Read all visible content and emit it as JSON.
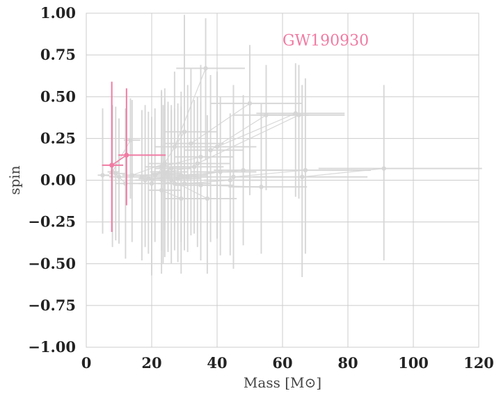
{
  "chart_data": {
    "type": "scatter",
    "xlabel": "Mass [M⊙]",
    "ylabel": "spin",
    "xlim": [
      0,
      120
    ],
    "ylim": [
      -1.0,
      1.0
    ],
    "x_ticks": [
      "0",
      "20",
      "40",
      "60",
      "80",
      "100",
      "120"
    ],
    "y_ticks": [
      "1.00",
      "0.75",
      "0.50",
      "0.25",
      "0.00",
      "−0.25",
      "−0.50",
      "−0.75",
      "−1.00"
    ],
    "grid": true,
    "colors": {
      "background_events": "#d6d6d6",
      "highlight": "#f07ba3",
      "grid": "#cccccc"
    },
    "annotation": {
      "text": "GW190930",
      "x": 60,
      "y": 0.84
    },
    "highlight": {
      "name": "GW190930",
      "points": [
        {
          "x": 7.8,
          "y": 0.09,
          "xerr": [
            3.0,
            3.5
          ],
          "yerr": [
            0.4,
            0.5
          ]
        },
        {
          "x": 12.3,
          "y": 0.15,
          "xerr": [
            2.5,
            12.0
          ],
          "yerr": [
            0.3,
            0.4
          ]
        }
      ]
    },
    "events": [
      {
        "points": [
          {
            "x": 36.5,
            "y": 0.67,
            "xerr": [
              9,
              12
            ],
            "yerr": [
              0.55,
              0.3
            ]
          },
          {
            "x": 27.0,
            "y": 0.2,
            "xerr": [
              6,
              8
            ],
            "yerr": [
              0.5,
              0.45
            ]
          }
        ]
      },
      {
        "points": [
          {
            "x": 50.0,
            "y": 0.46,
            "xerr": [
              12,
              16
            ],
            "yerr": [
              0.55,
              0.35
            ]
          },
          {
            "x": 32.0,
            "y": 0.22,
            "xerr": [
              8,
              10
            ],
            "yerr": [
              0.55,
              0.45
            ]
          }
        ]
      },
      {
        "points": [
          {
            "x": 64.0,
            "y": 0.4,
            "xerr": [
              12,
              15
            ],
            "yerr": [
              0.5,
              0.3
            ]
          },
          {
            "x": 40.0,
            "y": 0.2,
            "xerr": [
              10,
              12
            ],
            "yerr": [
              0.55,
              0.45
            ]
          }
        ]
      },
      {
        "points": [
          {
            "x": 55.0,
            "y": 0.39,
            "xerr": [
              10,
              13
            ],
            "yerr": [
              0.45,
              0.3
            ]
          },
          {
            "x": 38.0,
            "y": 0.18,
            "xerr": [
              8,
              10
            ],
            "yerr": [
              0.55,
              0.45
            ]
          }
        ]
      },
      {
        "points": [
          {
            "x": 65.0,
            "y": 0.39,
            "xerr": [
              12,
              14
            ],
            "yerr": [
              0.5,
              0.3
            ]
          },
          {
            "x": 34.0,
            "y": 0.1,
            "xerr": [
              8,
              10
            ],
            "yerr": [
              0.5,
              0.4
            ]
          }
        ]
      },
      {
        "points": [
          {
            "x": 91.0,
            "y": 0.07,
            "xerr": [
              20,
              30
            ],
            "yerr": [
              0.55,
              0.5
            ]
          },
          {
            "x": 66.0,
            "y": 0.02,
            "xerr": [
              15,
              20
            ],
            "yerr": [
              0.6,
              0.55
            ]
          }
        ]
      },
      {
        "points": [
          {
            "x": 67.0,
            "y": 0.06,
            "xerr": [
              14,
              20
            ],
            "yerr": [
              0.5,
              0.55
            ]
          },
          {
            "x": 45.0,
            "y": 0.02,
            "xerr": [
              12,
              15
            ],
            "yerr": [
              0.55,
              0.55
            ]
          }
        ]
      },
      {
        "points": [
          {
            "x": 53.5,
            "y": -0.04,
            "xerr": [
              10,
              14
            ],
            "yerr": [
              0.4,
              0.5
            ]
          },
          {
            "x": 35.0,
            "y": -0.03,
            "xerr": [
              8,
              10
            ],
            "yerr": [
              0.45,
              0.5
            ]
          }
        ]
      },
      {
        "points": [
          {
            "x": 48.0,
            "y": 0.06,
            "xerr": [
              9,
              12
            ],
            "yerr": [
              0.45,
              0.45
            ]
          },
          {
            "x": 29.0,
            "y": 0.03,
            "xerr": [
              6,
              8
            ],
            "yerr": [
              0.4,
              0.5
            ]
          }
        ]
      },
      {
        "points": [
          {
            "x": 44.0,
            "y": 0.0,
            "xerr": [
              8,
              10
            ],
            "yerr": [
              0.45,
              0.4
            ]
          },
          {
            "x": 30.0,
            "y": -0.02,
            "xerr": [
              6,
              8
            ],
            "yerr": [
              0.4,
              0.5
            ]
          }
        ]
      },
      {
        "points": [
          {
            "x": 30.0,
            "y": 0.29,
            "xerr": [
              6,
              10
            ],
            "yerr": [
              0.55,
              0.7
            ]
          },
          {
            "x": 20.0,
            "y": -0.02,
            "xerr": [
              4,
              6
            ],
            "yerr": [
              0.55,
              0.4
            ]
          }
        ]
      },
      {
        "points": [
          {
            "x": 29.0,
            "y": -0.11,
            "xerr": [
              5,
              7
            ],
            "yerr": [
              0.45,
              0.55
            ]
          },
          {
            "x": 23.0,
            "y": -0.06,
            "xerr": [
              4,
              6
            ],
            "yerr": [
              0.5,
              0.6
            ]
          }
        ]
      },
      {
        "points": [
          {
            "x": 37.0,
            "y": -0.11,
            "xerr": [
              7,
              9
            ],
            "yerr": [
              0.45,
              0.5
            ]
          },
          {
            "x": 26.0,
            "y": 0.0,
            "xerr": [
              5,
              6
            ],
            "yerr": [
              0.5,
              0.45
            ]
          }
        ]
      },
      {
        "points": [
          {
            "x": 13.5,
            "y": 0.24,
            "xerr": [
              2,
              3
            ],
            "yerr": [
              0.35,
              0.25
            ]
          },
          {
            "x": 8.0,
            "y": 0.05,
            "xerr": [
              1.5,
              2
            ],
            "yerr": [
              0.45,
              0.4
            ]
          }
        ]
      },
      {
        "points": [
          {
            "x": 10.0,
            "y": 0.02,
            "xerr": [
              3,
              4
            ],
            "yerr": [
              0.4,
              0.35
            ]
          },
          {
            "x": 5.0,
            "y": 0.03,
            "xerr": [
              1.5,
              2
            ],
            "yerr": [
              0.35,
              0.4
            ]
          }
        ]
      },
      {
        "points": [
          {
            "x": 24.0,
            "y": 0.1,
            "xerr": [
              5,
              8
            ],
            "yerr": [
              0.4,
              0.45
            ]
          },
          {
            "x": 14.0,
            "y": 0.03,
            "xerr": [
              3,
              5
            ],
            "yerr": [
              0.4,
              0.45
            ]
          }
        ]
      },
      {
        "points": [
          {
            "x": 25.0,
            "y": 0.02,
            "xerr": [
              4,
              6
            ],
            "yerr": [
              0.45,
              0.45
            ]
          },
          {
            "x": 18.0,
            "y": 0.0,
            "xerr": [
              3,
              4
            ],
            "yerr": [
              0.4,
              0.45
            ]
          }
        ]
      },
      {
        "points": [
          {
            "x": 23.5,
            "y": 0.05,
            "xerr": [
              4,
              5
            ],
            "yerr": [
              0.55,
              0.4
            ]
          },
          {
            "x": 17.0,
            "y": 0.02,
            "xerr": [
              3,
              4
            ],
            "yerr": [
              0.5,
              0.4
            ]
          }
        ]
      },
      {
        "points": [
          {
            "x": 26.0,
            "y": 0.07,
            "xerr": [
              5,
              6
            ],
            "yerr": [
              0.3,
              0.35
            ]
          },
          {
            "x": 21.0,
            "y": 0.03,
            "xerr": [
              3,
              4
            ],
            "yerr": [
              0.4,
              0.4
            ]
          }
        ]
      },
      {
        "points": [
          {
            "x": 31.0,
            "y": 0.02,
            "xerr": [
              6,
              7
            ],
            "yerr": [
              0.45,
              0.55
            ]
          },
          {
            "x": 24.0,
            "y": 0.04,
            "xerr": [
              4,
              5
            ],
            "yerr": [
              0.5,
              0.45
            ]
          }
        ]
      },
      {
        "points": [
          {
            "x": 33.0,
            "y": 0.08,
            "xerr": [
              6,
              9
            ],
            "yerr": [
              0.4,
              0.4
            ]
          },
          {
            "x": 25.0,
            "y": 0.05,
            "xerr": [
              5,
              6
            ],
            "yerr": [
              0.45,
              0.4
            ]
          }
        ]
      },
      {
        "points": [
          {
            "x": 41.0,
            "y": 0.05,
            "xerr": [
              9,
              11
            ],
            "yerr": [
              0.5,
              0.45
            ]
          },
          {
            "x": 28.0,
            "y": 0.01,
            "xerr": [
              6,
              7
            ],
            "yerr": [
              0.5,
              0.45
            ]
          }
        ]
      },
      {
        "points": [
          {
            "x": 35.0,
            "y": 0.14,
            "xerr": [
              8,
              10
            ],
            "yerr": [
              0.45,
              0.55
            ]
          },
          {
            "x": 23.0,
            "y": 0.08,
            "xerr": [
              5,
              7
            ],
            "yerr": [
              0.5,
              0.45
            ]
          }
        ]
      },
      {
        "points": [
          {
            "x": 27.0,
            "y": -0.02,
            "xerr": [
              5,
              7
            ],
            "yerr": [
              0.4,
              0.45
            ]
          },
          {
            "x": 19.0,
            "y": 0.01,
            "xerr": [
              3,
              5
            ],
            "yerr": [
              0.45,
              0.4
            ]
          }
        ]
      },
      {
        "points": [
          {
            "x": 12.0,
            "y": -0.02,
            "xerr": [
              3,
              5
            ],
            "yerr": [
              0.45,
              0.45
            ]
          },
          {
            "x": 9.0,
            "y": 0.04,
            "xerr": [
              2,
              3
            ],
            "yerr": [
              0.4,
              0.4
            ]
          }
        ]
      }
    ]
  }
}
